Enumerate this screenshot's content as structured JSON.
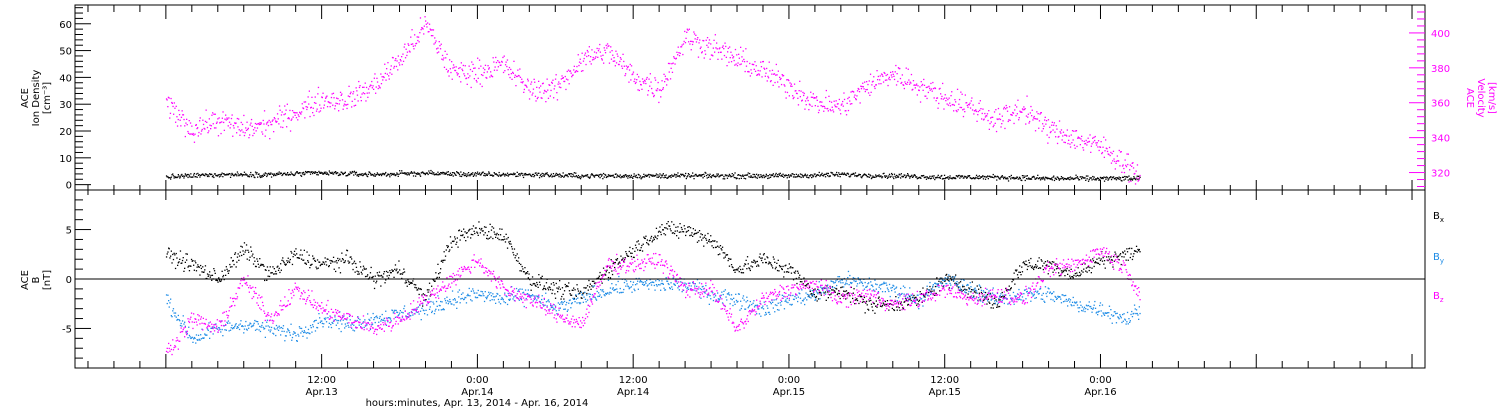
{
  "chart_data": [
    {
      "type": "scatter",
      "panel": "top",
      "ylabel": "ACE Ion Density [cm⁻³]",
      "ylabel_lines": [
        "ACE",
        "Ion Density",
        "[cm⁻³]"
      ],
      "ylim": [
        -2,
        67
      ],
      "yticks": [
        0,
        10,
        20,
        30,
        40,
        50,
        60
      ],
      "y2label": "ACE Velocity [km/s]",
      "y2label_lines": [
        "ACE",
        "Velocity",
        "[km/s]"
      ],
      "y2lim": [
        310,
        416
      ],
      "y2ticks": [
        320,
        340,
        360,
        380,
        400
      ],
      "series": [
        {
          "color": "#000000",
          "axis": "left",
          "x": [
            0,
            4,
            8,
            12,
            16,
            20,
            24,
            28,
            32,
            36,
            40,
            44,
            48,
            52,
            56,
            60,
            64,
            68,
            72,
            75
          ],
          "values": [
            3.0,
            4.0,
            4.0,
            4.5,
            4.0,
            4.5,
            4.0,
            4.0,
            3.5,
            3.5,
            3.5,
            3.5,
            3.5,
            4.0,
            3.5,
            3.0,
            3.0,
            2.5,
            2.5,
            2.5
          ]
        },
        {
          "color": "#ff00ff",
          "axis": "right",
          "x": [
            0,
            2,
            4,
            6,
            8,
            10,
            12,
            14,
            16,
            18,
            20,
            22,
            24,
            26,
            28,
            30,
            32,
            34,
            36,
            38,
            40,
            42,
            44,
            46,
            48,
            50,
            52,
            54,
            56,
            58,
            60,
            62,
            64,
            66,
            68,
            70,
            72,
            74,
            75
          ],
          "values": [
            360,
            345,
            350,
            345,
            348,
            355,
            362,
            362,
            370,
            385,
            405,
            378,
            378,
            382,
            368,
            368,
            385,
            390,
            375,
            368,
            398,
            392,
            385,
            378,
            370,
            360,
            358,
            370,
            377,
            370,
            363,
            358,
            350,
            357,
            345,
            340,
            335,
            325,
            318
          ]
        }
      ]
    },
    {
      "type": "scatter",
      "panel": "bottom",
      "ylabel": "ACE B [nT]",
      "ylabel_lines": [
        "ACE",
        "B",
        "[nT]"
      ],
      "ylim": [
        -9,
        9
      ],
      "yticks": [
        -5,
        0,
        5
      ],
      "legend_position": "right",
      "legend": [
        "Bx",
        "By",
        "Bz"
      ],
      "series": [
        {
          "name": "Bx",
          "color": "#000000",
          "x": [
            0,
            2,
            4,
            6,
            8,
            10,
            12,
            14,
            16,
            18,
            20,
            22,
            24,
            26,
            28,
            30,
            32,
            34,
            36,
            38,
            40,
            42,
            44,
            46,
            48,
            50,
            52,
            54,
            56,
            58,
            60,
            62,
            64,
            66,
            68,
            70,
            72,
            74,
            75
          ],
          "values": [
            2.5,
            1.5,
            0.0,
            3.0,
            0.5,
            2.5,
            1.5,
            2.0,
            0.0,
            1.0,
            -2.0,
            4.0,
            5.0,
            4.5,
            0.0,
            -1.0,
            -1.5,
            1.0,
            3.0,
            5.0,
            5.0,
            4.0,
            1.0,
            2.0,
            1.0,
            -1.5,
            -1.0,
            -2.5,
            -2.5,
            -2.0,
            0.0,
            -1.0,
            -2.5,
            1.5,
            1.5,
            0.5,
            2.0,
            2.5,
            3.0
          ]
        },
        {
          "name": "By",
          "color": "#1e8ce6",
          "x": [
            0,
            2,
            4,
            6,
            8,
            10,
            12,
            14,
            16,
            18,
            20,
            22,
            24,
            26,
            28,
            30,
            32,
            34,
            36,
            38,
            40,
            42,
            44,
            46,
            48,
            50,
            52,
            54,
            56,
            58,
            60,
            62,
            64,
            66,
            68,
            70,
            72,
            74,
            75
          ],
          "values": [
            -2.0,
            -6.0,
            -5.0,
            -4.5,
            -5.0,
            -5.5,
            -4.0,
            -4.5,
            -4.0,
            -3.5,
            -3.0,
            -2.0,
            -1.5,
            -2.0,
            -1.5,
            -3.0,
            -2.0,
            -1.0,
            -0.5,
            -0.5,
            -0.5,
            -1.5,
            -2.0,
            -3.0,
            -2.0,
            -1.5,
            0.0,
            -0.5,
            -1.0,
            -2.0,
            0.0,
            -1.0,
            -2.0,
            -1.5,
            -1.5,
            -2.5,
            -3.0,
            -4.0,
            -3.0
          ]
        },
        {
          "name": "Bz",
          "color": "#ff00ff",
          "x": [
            0,
            2,
            4,
            6,
            8,
            10,
            12,
            14,
            16,
            18,
            20,
            22,
            24,
            26,
            28,
            30,
            32,
            34,
            36,
            38,
            40,
            42,
            44,
            46,
            48,
            50,
            52,
            54,
            56,
            58,
            60,
            62,
            64,
            66,
            68,
            70,
            72,
            74,
            75
          ],
          "values": [
            -7.5,
            -4.0,
            -5.0,
            0.0,
            -4.0,
            -1.0,
            -3.0,
            -4.0,
            -5.0,
            -4.0,
            -2.0,
            0.0,
            2.0,
            -1.0,
            -2.0,
            -3.5,
            -4.5,
            1.5,
            1.5,
            2.0,
            -1.0,
            -1.0,
            -5.0,
            -2.0,
            -1.0,
            -0.5,
            -2.0,
            -1.5,
            -2.5,
            -2.0,
            -1.0,
            -2.0,
            -1.5,
            -2.0,
            1.0,
            1.5,
            3.0,
            1.0,
            -1.5
          ]
        }
      ]
    }
  ],
  "x_axis": {
    "xlim": [
      -7,
      97
    ],
    "xlabel": "hours:minutes, Apr. 13, 2014 - Apr. 16, 2014",
    "ticks": [
      {
        "x": 12,
        "time": "12:00",
        "date": "Apr.13"
      },
      {
        "x": 24,
        "time": "0:00",
        "date": "Apr.14"
      },
      {
        "x": 36,
        "time": "12:00",
        "date": "Apr.14"
      },
      {
        "x": 48,
        "time": "0:00",
        "date": "Apr.15"
      },
      {
        "x": 60,
        "time": "12:00",
        "date": "Apr.15"
      },
      {
        "x": 72,
        "time": "0:00",
        "date": "Apr.16"
      }
    ]
  }
}
